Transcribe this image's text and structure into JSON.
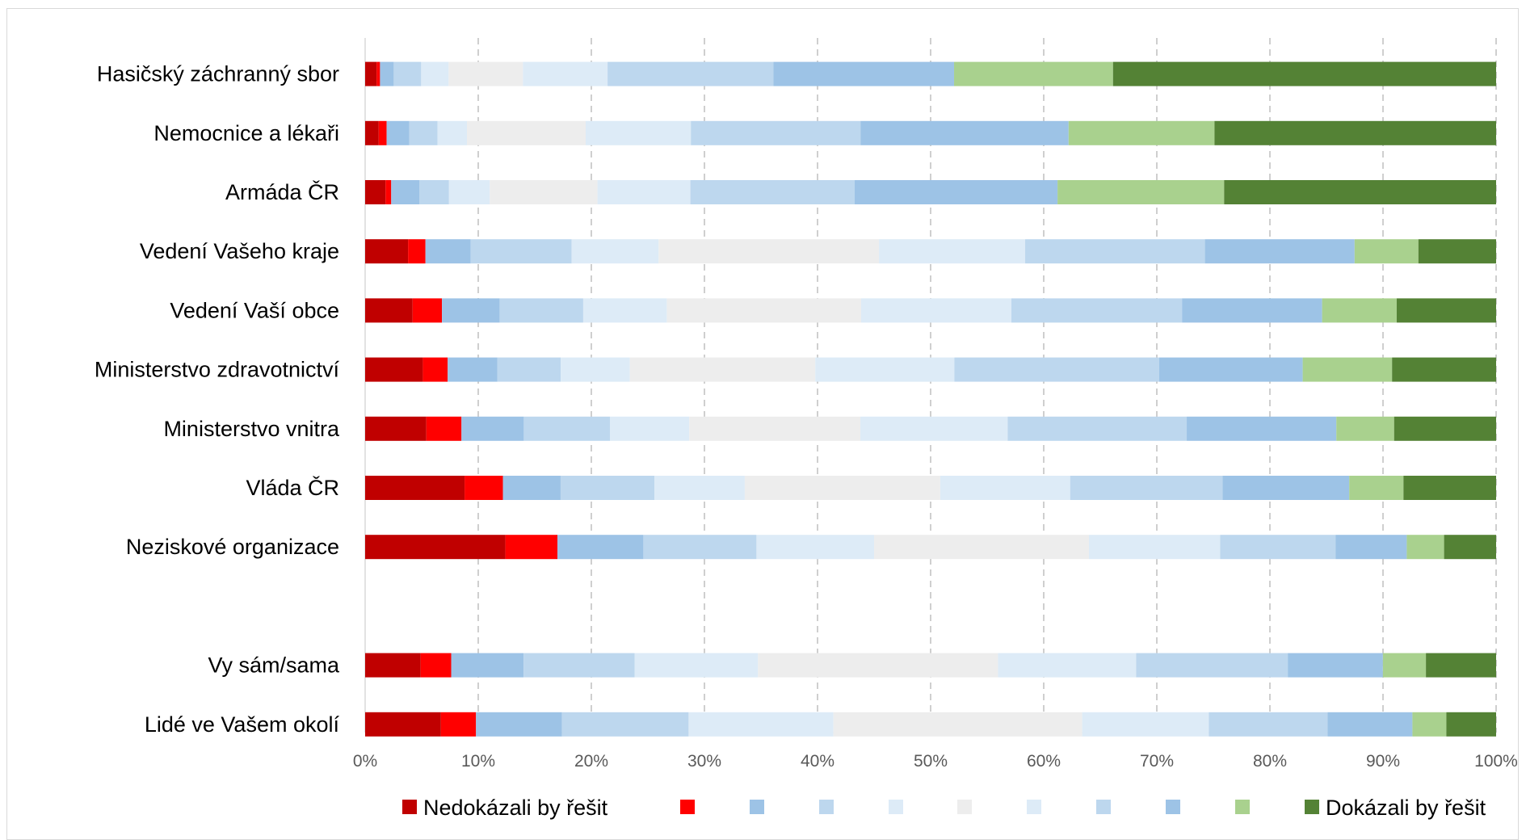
{
  "chart_data": {
    "type": "bar",
    "orientation": "horizontal",
    "stacked": "percent",
    "categories": [
      "Hasičský záchranný sbor",
      "Nemocnice a lékaři",
      "Armáda ČR",
      "Vedení Vašeho kraje",
      "Vedení Vaší obce",
      "Ministerstvo zdravotnictví",
      "Ministerstvo vnitra",
      "Vláda ČR",
      "Neziskové organizace",
      "",
      "Vy sám/sama",
      "Lidé ve Vašem okolí"
    ],
    "series": [
      {
        "name": "Nedokázali by řešit",
        "color": "#C00000",
        "values": [
          1.0,
          1.2,
          1.8,
          3.7,
          4.2,
          5.1,
          5.4,
          8.8,
          12.4,
          null,
          4.9,
          6.7
        ]
      },
      {
        "name": "",
        "color": "#FF0000",
        "values": [
          0.3,
          0.7,
          0.5,
          1.5,
          2.6,
          2.2,
          3.1,
          3.4,
          4.6,
          null,
          2.7,
          3.1
        ]
      },
      {
        "name": "",
        "color": "#9DC3E6",
        "values": [
          1.2,
          2.0,
          2.5,
          3.9,
          5.1,
          4.4,
          5.5,
          5.1,
          7.6,
          null,
          6.4,
          7.6
        ]
      },
      {
        "name": "",
        "color": "#BDD7EE",
        "values": [
          2.4,
          2.5,
          2.6,
          8.7,
          7.4,
          5.6,
          7.6,
          8.3,
          10.0,
          null,
          9.8,
          11.2
        ]
      },
      {
        "name": "",
        "color": "#DDEBF7",
        "values": [
          2.4,
          2.6,
          3.6,
          7.5,
          7.4,
          6.1,
          7.0,
          8.0,
          10.4,
          null,
          10.9,
          12.8
        ]
      },
      {
        "name": "",
        "color": "#EDEDED",
        "values": [
          6.5,
          10.5,
          9.5,
          19.0,
          17.2,
          16.4,
          15.1,
          17.3,
          19.0,
          null,
          21.2,
          22.0
        ]
      },
      {
        "name": "",
        "color": "#DDEBF7",
        "values": [
          7.4,
          9.3,
          8.2,
          12.6,
          13.3,
          12.3,
          13.0,
          11.5,
          11.6,
          null,
          12.2,
          11.2
        ]
      },
      {
        "name": "",
        "color": "#BDD7EE",
        "values": [
          14.5,
          15.0,
          14.5,
          15.5,
          15.1,
          18.1,
          15.8,
          13.5,
          10.2,
          null,
          13.4,
          10.5
        ]
      },
      {
        "name": "",
        "color": "#9DC3E6",
        "values": [
          15.8,
          18.4,
          17.9,
          12.9,
          12.4,
          12.7,
          13.2,
          11.2,
          6.3,
          null,
          8.4,
          7.5
        ]
      },
      {
        "name": "",
        "color": "#A9D18E",
        "values": [
          13.9,
          12.9,
          14.7,
          5.5,
          6.6,
          7.9,
          5.1,
          4.8,
          3.3,
          null,
          3.8,
          3.0
        ]
      },
      {
        "name": "Dokázali by řešit",
        "color": "#548235",
        "values": [
          33.5,
          24.9,
          24.0,
          6.7,
          8.8,
          9.2,
          9.0,
          8.2,
          4.6,
          null,
          6.2,
          4.4
        ]
      }
    ],
    "xlim": [
      0,
      100
    ],
    "xticks": [
      "0%",
      "10%",
      "20%",
      "30%",
      "40%",
      "50%",
      "60%",
      "70%",
      "80%",
      "90%",
      "100%"
    ],
    "grid": "vertical dashed",
    "legend": "bottom",
    "title": "",
    "xlabel": "",
    "ylabel": ""
  }
}
